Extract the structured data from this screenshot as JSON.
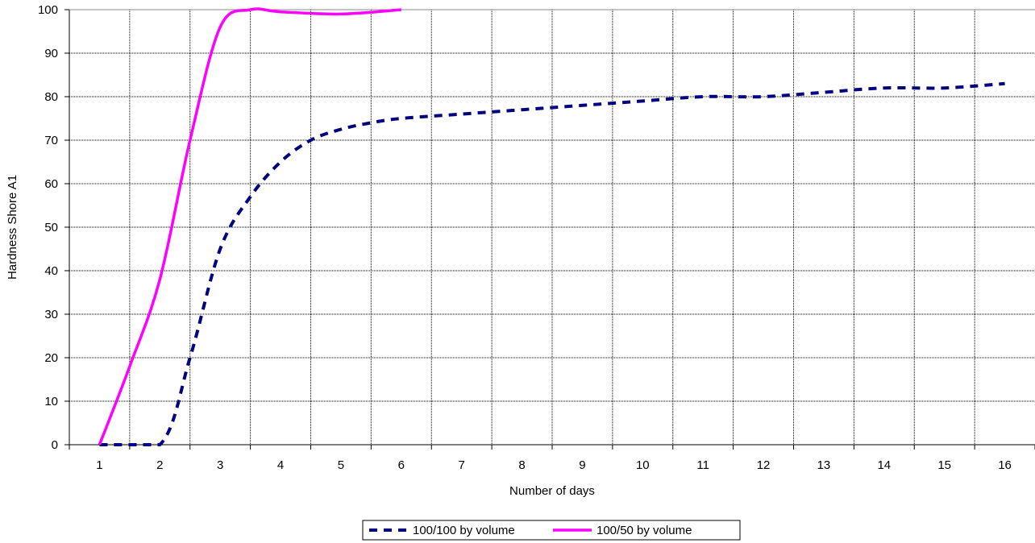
{
  "chart_data": {
    "type": "line",
    "xlabel": "Number of days",
    "ylabel": "Hardness Shore A1",
    "ylim": [
      0,
      100
    ],
    "yticks": [
      0,
      10,
      20,
      30,
      40,
      50,
      60,
      70,
      80,
      90,
      100
    ],
    "categories": [
      "1",
      "2",
      "3",
      "4",
      "5",
      "6",
      "7",
      "8",
      "9",
      "10",
      "11",
      "12",
      "13",
      "14",
      "15",
      "16"
    ],
    "grid": true,
    "legend_position": "bottom",
    "series": [
      {
        "name": "100/100 by volume",
        "color": "#000080",
        "style": "dashed",
        "points": [
          [
            1,
            0
          ],
          [
            2,
            0
          ],
          [
            2.5,
            20
          ],
          [
            3,
            45
          ],
          [
            3.5,
            57
          ],
          [
            4,
            65
          ],
          [
            4.5,
            70
          ],
          [
            5,
            72.5
          ],
          [
            5.5,
            74
          ],
          [
            6,
            75
          ],
          [
            7,
            76
          ],
          [
            8,
            77
          ],
          [
            9,
            78
          ],
          [
            10,
            79
          ],
          [
            11,
            80
          ],
          [
            12,
            80
          ],
          [
            13,
            81
          ],
          [
            14,
            82
          ],
          [
            15,
            82
          ],
          [
            16,
            83
          ]
        ]
      },
      {
        "name": "100/50 by volume",
        "color": "#ff00ff",
        "style": "solid",
        "points": [
          [
            1,
            0
          ],
          [
            1.5,
            18
          ],
          [
            2,
            38
          ],
          [
            2.5,
            70
          ],
          [
            3,
            96
          ],
          [
            3.5,
            100
          ],
          [
            4,
            99.5
          ],
          [
            5,
            99
          ],
          [
            6,
            100
          ]
        ]
      }
    ]
  }
}
